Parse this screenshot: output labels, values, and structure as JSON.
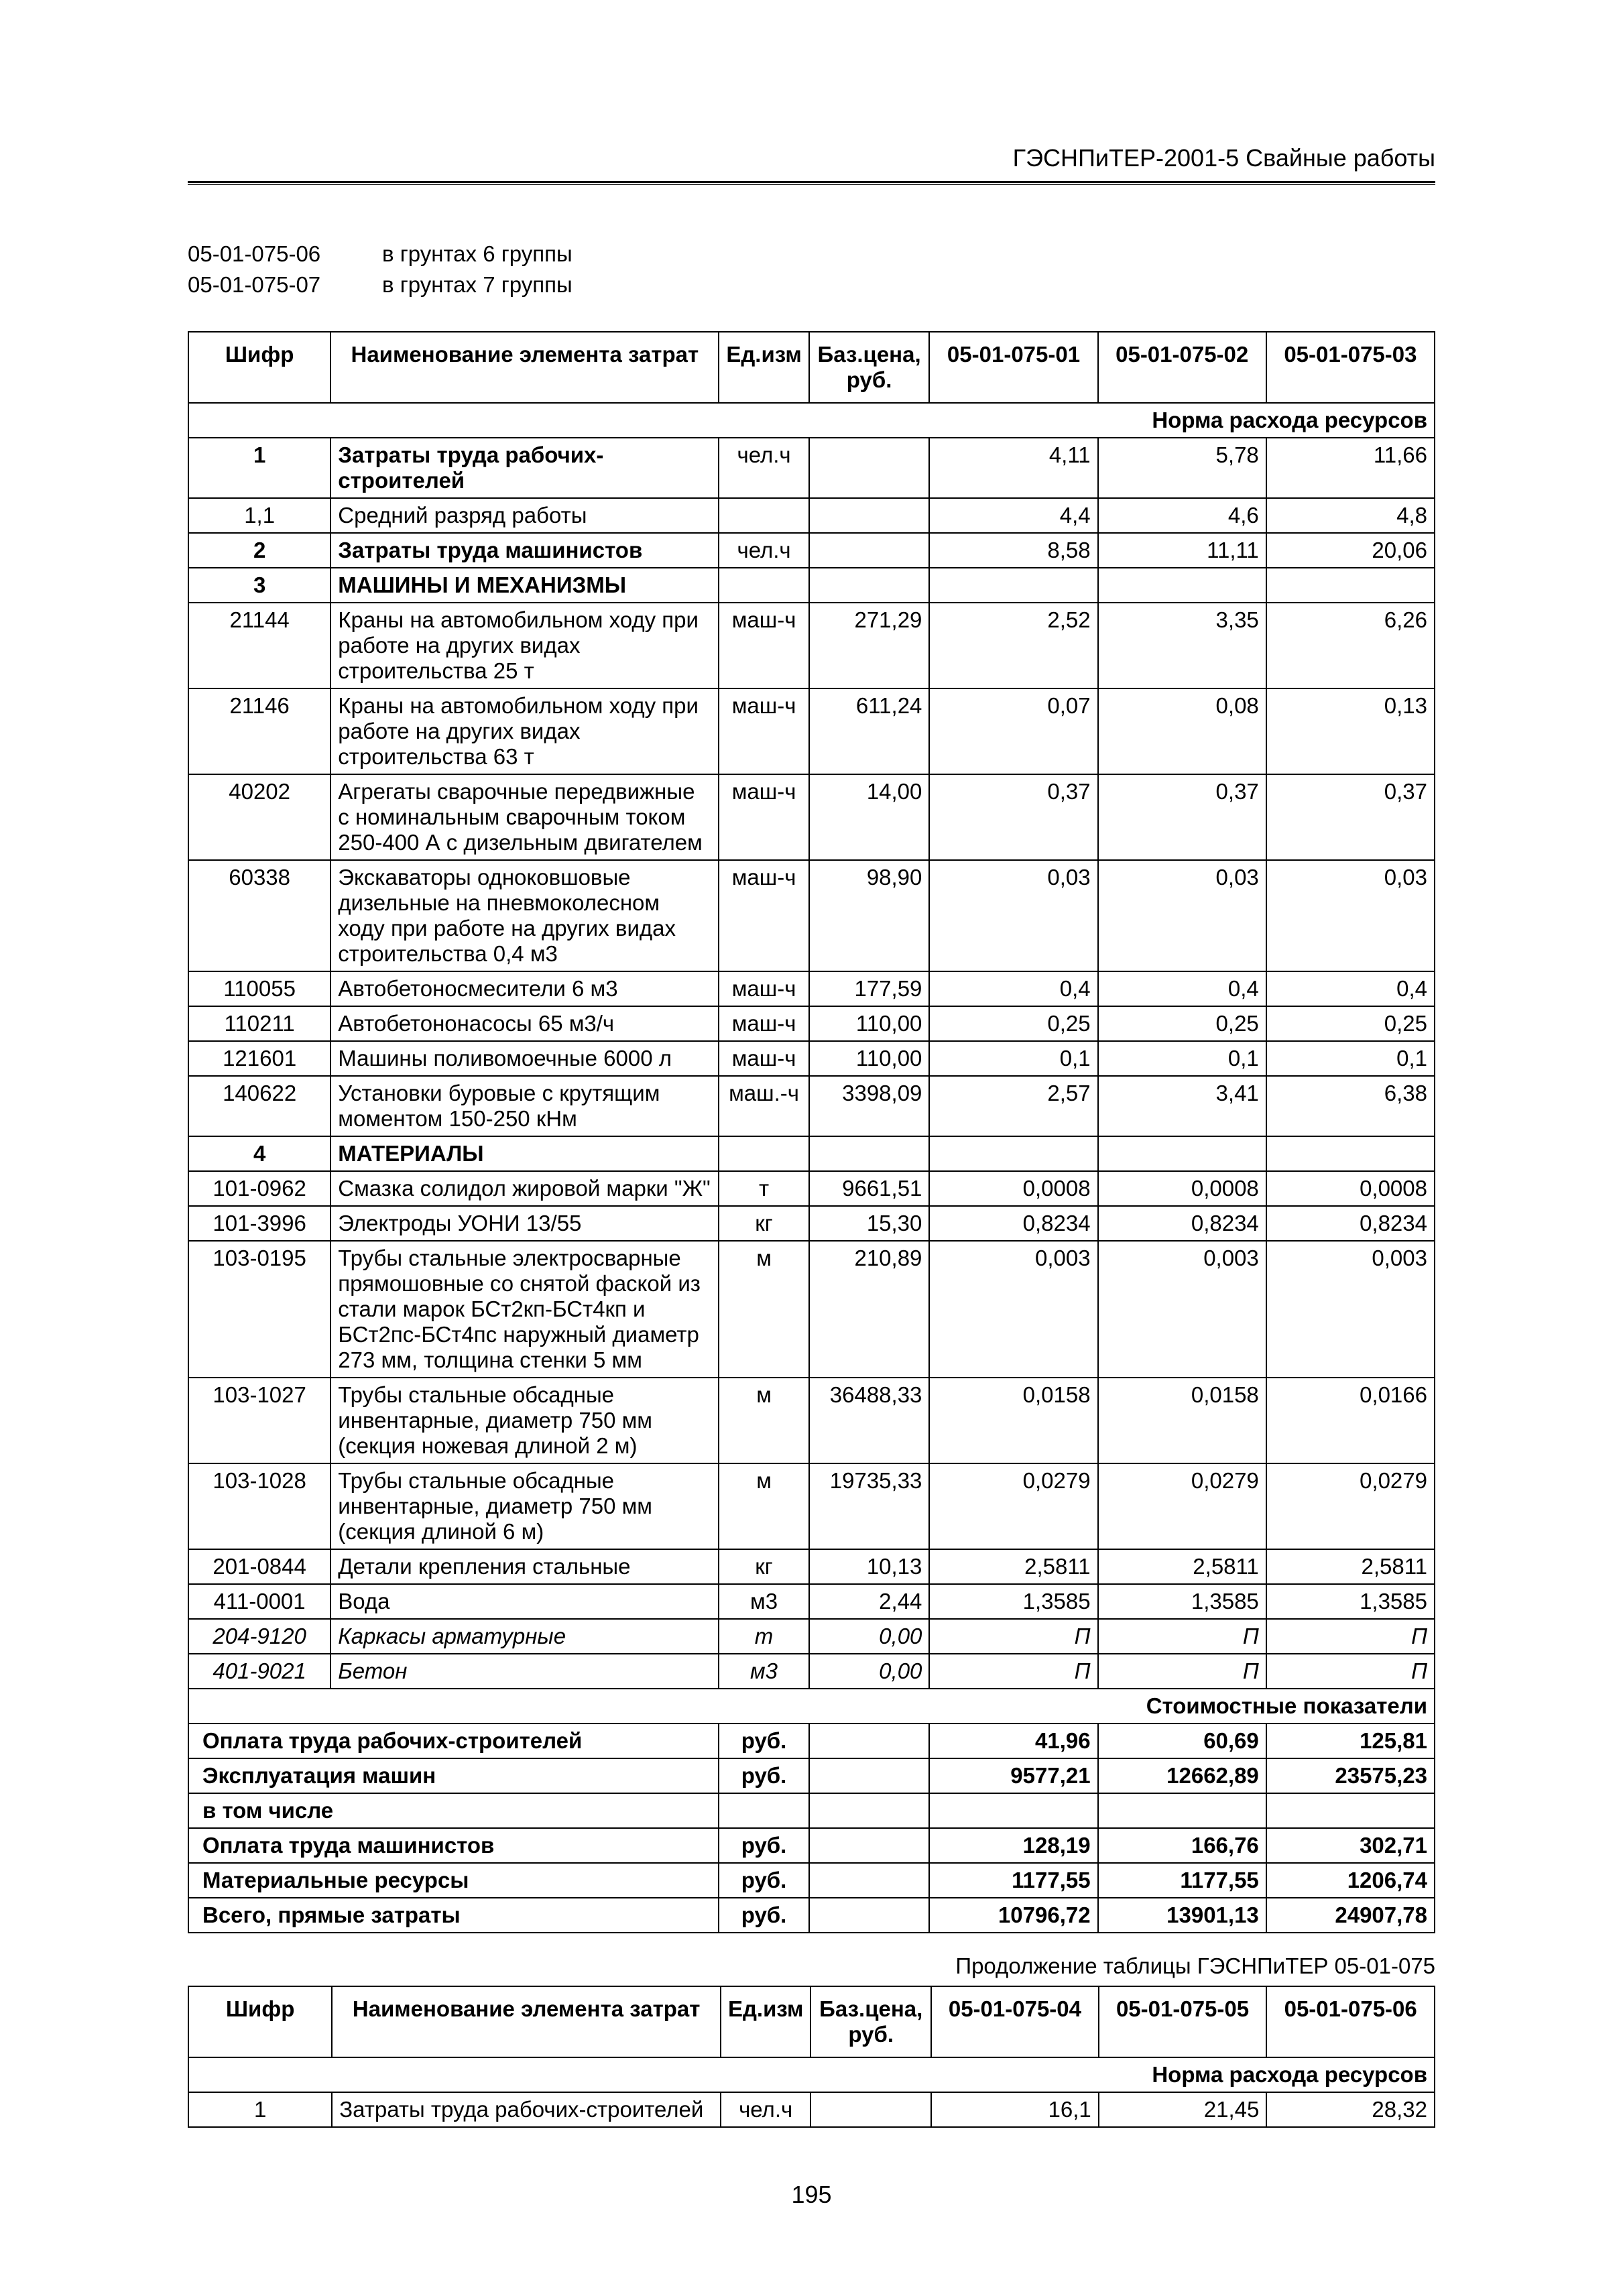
{
  "header": "ГЭСНПиТЕР-2001-5 Свайные работы",
  "page_number": "195",
  "intro": [
    {
      "code": "05-01-075-06",
      "text": "в грунтах 6 группы"
    },
    {
      "code": "05-01-075-07",
      "text": "в грунтах 7 группы"
    }
  ],
  "table1": {
    "headers": {
      "shifr": "Шифр",
      "name": "Наименование элемента затрат",
      "unit": "Ед.изм",
      "base_price": "Баз.цена, руб.",
      "c1": "05-01-075-01",
      "c2": "05-01-075-02",
      "c3": "05-01-075-03"
    },
    "section_norm": "Норма расхода ресурсов",
    "section_cost": "Стоимостные показатели",
    "rows": [
      {
        "shifr": "1",
        "name": "Затраты труда рабочих-строителей",
        "unit": "чел.ч",
        "price": "",
        "v1": "4,11",
        "v2": "5,78",
        "v3": "11,66",
        "bold": true,
        "top": true
      },
      {
        "shifr": "1,1",
        "name": "Средний разряд работы",
        "unit": "",
        "price": "",
        "v1": "4,4",
        "v2": "4,6",
        "v3": "4,8",
        "bot": true
      },
      {
        "shifr": "2",
        "name": "Затраты труда машинистов",
        "unit": "чел.ч",
        "price": "",
        "v1": "8,58",
        "v2": "11,11",
        "v3": "20,06",
        "bold": true,
        "top": true,
        "bot": true
      },
      {
        "shifr": "3",
        "name": "МАШИНЫ И МЕХАНИЗМЫ",
        "unit": "",
        "price": "",
        "v1": "",
        "v2": "",
        "v3": "",
        "bold": true,
        "section": true,
        "top": true
      },
      {
        "shifr": "21144",
        "name": "Краны на автомобильном ходу при работе на других видах строительства 25 т",
        "unit": "маш-ч",
        "price": "271,29",
        "v1": "2,52",
        "v2": "3,35",
        "v3": "6,26"
      },
      {
        "shifr": "21146",
        "name": "Краны на автомобильном ходу при работе на других видах строительства 63 т",
        "unit": "маш-ч",
        "price": "611,24",
        "v1": "0,07",
        "v2": "0,08",
        "v3": "0,13"
      },
      {
        "shifr": "40202",
        "name": "Агрегаты сварочные передвижные с номинальным сварочным током 250-400 А с дизельным двигателем",
        "unit": "маш-ч",
        "price": "14,00",
        "v1": "0,37",
        "v2": "0,37",
        "v3": "0,37"
      },
      {
        "shifr": "60338",
        "name": "Экскаваторы одноковшовые дизельные на пневмоколесном ходу при работе на других видах строительства 0,4 м3",
        "unit": "маш-ч",
        "price": "98,90",
        "v1": "0,03",
        "v2": "0,03",
        "v3": "0,03"
      },
      {
        "shifr": "110055",
        "name": "Автобетоносмесители 6 м3",
        "unit": "маш-ч",
        "price": "177,59",
        "v1": "0,4",
        "v2": "0,4",
        "v3": "0,4"
      },
      {
        "shifr": "110211",
        "name": "Автобетононасосы 65 м3/ч",
        "unit": "маш-ч",
        "price": "110,00",
        "v1": "0,25",
        "v2": "0,25",
        "v3": "0,25"
      },
      {
        "shifr": "121601",
        "name": "Машины поливомоечные 6000 л",
        "unit": "маш-ч",
        "price": "110,00",
        "v1": "0,1",
        "v2": "0,1",
        "v3": "0,1"
      },
      {
        "shifr": "140622",
        "name": "Установки буровые с крутящим моментом 150-250 кНм",
        "unit": "маш.-ч",
        "price": "3398,09",
        "v1": "2,57",
        "v2": "3,41",
        "v3": "6,38",
        "bot": true
      },
      {
        "shifr": "4",
        "name": "МАТЕРИАЛЫ",
        "unit": "",
        "price": "",
        "v1": "",
        "v2": "",
        "v3": "",
        "bold": true,
        "section": true,
        "top": true
      },
      {
        "shifr": "101-0962",
        "name": "Смазка солидол жировой марки \"Ж\"",
        "unit": "т",
        "price": "9661,51",
        "v1": "0,0008",
        "v2": "0,0008",
        "v3": "0,0008"
      },
      {
        "shifr": "101-3996",
        "name": "Электроды УОНИ 13/55",
        "unit": "кг",
        "price": "15,30",
        "v1": "0,8234",
        "v2": "0,8234",
        "v3": "0,8234"
      },
      {
        "shifr": "103-0195",
        "name": "Трубы стальные электросварные прямошовные со снятой фаской из стали марок БСт2кп-БСт4кп и БСт2пс-БСт4пс наружный диаметр 273 мм, толщина стенки 5 мм",
        "unit": "м",
        "price": "210,89",
        "v1": "0,003",
        "v2": "0,003",
        "v3": "0,003"
      },
      {
        "shifr": "103-1027",
        "name": "Трубы стальные обсадные инвентарные, диаметр 750 мм (секция ножевая длиной 2 м)",
        "unit": "м",
        "price": "36488,33",
        "v1": "0,0158",
        "v2": "0,0158",
        "v3": "0,0166"
      },
      {
        "shifr": "103-1028",
        "name": "Трубы стальные обсадные инвентарные, диаметр 750 мм (секция длиной 6 м)",
        "unit": "м",
        "price": "19735,33",
        "v1": "0,0279",
        "v2": "0,0279",
        "v3": "0,0279"
      },
      {
        "shifr": "201-0844",
        "name": "Детали крепления стальные",
        "unit": "кг",
        "price": "10,13",
        "v1": "2,5811",
        "v2": "2,5811",
        "v3": "2,5811"
      },
      {
        "shifr": "411-0001",
        "name": "Вода",
        "unit": "м3",
        "price": "2,44",
        "v1": "1,3585",
        "v2": "1,3585",
        "v3": "1,3585"
      },
      {
        "shifr": "204-9120",
        "name": "Каркасы арматурные",
        "unit": "т",
        "price": "0,00",
        "v1": "П",
        "v2": "П",
        "v3": "П",
        "italic": true
      },
      {
        "shifr": "401-9021",
        "name": "Бетон",
        "unit": "м3",
        "price": "0,00",
        "v1": "П",
        "v2": "П",
        "v3": "П",
        "italic": true,
        "bot": true
      }
    ],
    "cost_rows": [
      {
        "name": "Оплата труда рабочих-строителей",
        "unit": "руб.",
        "v1": "41,96",
        "v2": "60,69",
        "v3": "125,81",
        "bold": true
      },
      {
        "name": "Эксплуатация машин",
        "unit": "руб.",
        "v1": "9577,21",
        "v2": "12662,89",
        "v3": "23575,23",
        "bold": true
      },
      {
        "name": "в том числе",
        "unit": "",
        "v1": "",
        "v2": "",
        "v3": "",
        "bold": true
      },
      {
        "name": "Оплата труда машинистов",
        "unit": "руб.",
        "v1": "128,19",
        "v2": "166,76",
        "v3": "302,71",
        "bold": true
      },
      {
        "name": "Материальные ресурсы",
        "unit": "руб.",
        "v1": "1177,55",
        "v2": "1177,55",
        "v3": "1206,74",
        "bold": true
      },
      {
        "name": "Всего, прямые затраты",
        "unit": "руб.",
        "v1": "10796,72",
        "v2": "13901,13",
        "v3": "24907,78",
        "bold": true
      }
    ]
  },
  "continuation": "Продолжение таблицы ГЭСНПиТЕР 05-01-075",
  "table2": {
    "headers": {
      "shifr": "Шифр",
      "name": "Наименование элемента затрат",
      "unit": "Ед.изм",
      "base_price": "Баз.цена, руб.",
      "c1": "05-01-075-04",
      "c2": "05-01-075-05",
      "c3": "05-01-075-06"
    },
    "section_norm": "Норма расхода ресурсов",
    "rows": [
      {
        "shifr": "1",
        "name": "Затраты труда рабочих-строителей",
        "unit": "чел.ч",
        "price": "",
        "v1": "16,1",
        "v2": "21,45",
        "v3": "28,32"
      }
    ]
  }
}
